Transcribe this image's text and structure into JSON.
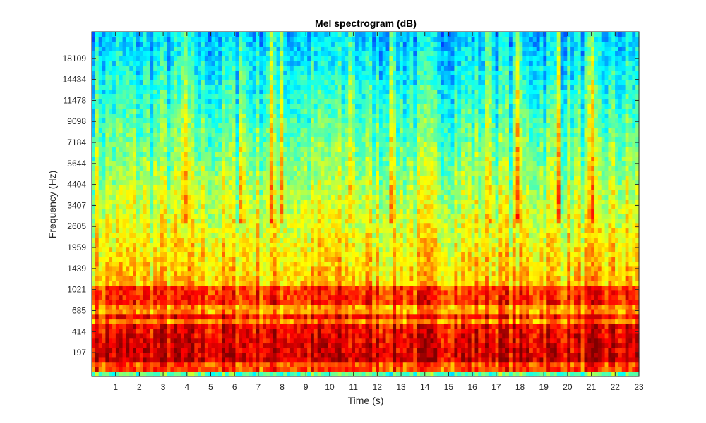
{
  "chart_data": {
    "type": "heatmap",
    "title": "Mel spectrogram (dB)",
    "xlabel": "Time (s)",
    "ylabel": "Frequency (Hz)",
    "xlim": [
      0,
      23
    ],
    "x_ticks": [
      1,
      2,
      3,
      4,
      5,
      6,
      7,
      8,
      9,
      10,
      11,
      12,
      13,
      14,
      15,
      16,
      17,
      18,
      19,
      20,
      21,
      22,
      23
    ],
    "y_scale": "mel",
    "y_ticks": [
      {
        "value": 197,
        "label": "197"
      },
      {
        "value": 414,
        "label": "414"
      },
      {
        "value": 685,
        "label": "685"
      },
      {
        "value": 1021,
        "label": "1021"
      },
      {
        "value": 1439,
        "label": "1439"
      },
      {
        "value": 1959,
        "label": "1959"
      },
      {
        "value": 2605,
        "label": "2605"
      },
      {
        "value": 3407,
        "label": "3407"
      },
      {
        "value": 4404,
        "label": "4404"
      },
      {
        "value": 5644,
        "label": "5644"
      },
      {
        "value": 7184,
        "label": "7184"
      },
      {
        "value": 9098,
        "label": "9098"
      },
      {
        "value": 11478,
        "label": "11478"
      },
      {
        "value": 14434,
        "label": "14434"
      },
      {
        "value": 18109,
        "label": "18109"
      }
    ],
    "colormap": "jet",
    "grid": false,
    "colorbar": false,
    "harmonic_bands_hz": [
      150,
      260,
      330,
      470,
      600,
      850,
      1021
    ],
    "bright_onsets_s": [
      3.9,
      6.3,
      7.5,
      8.0,
      10.9,
      12.6,
      16.7,
      17.9,
      19.6,
      21.0
    ]
  }
}
